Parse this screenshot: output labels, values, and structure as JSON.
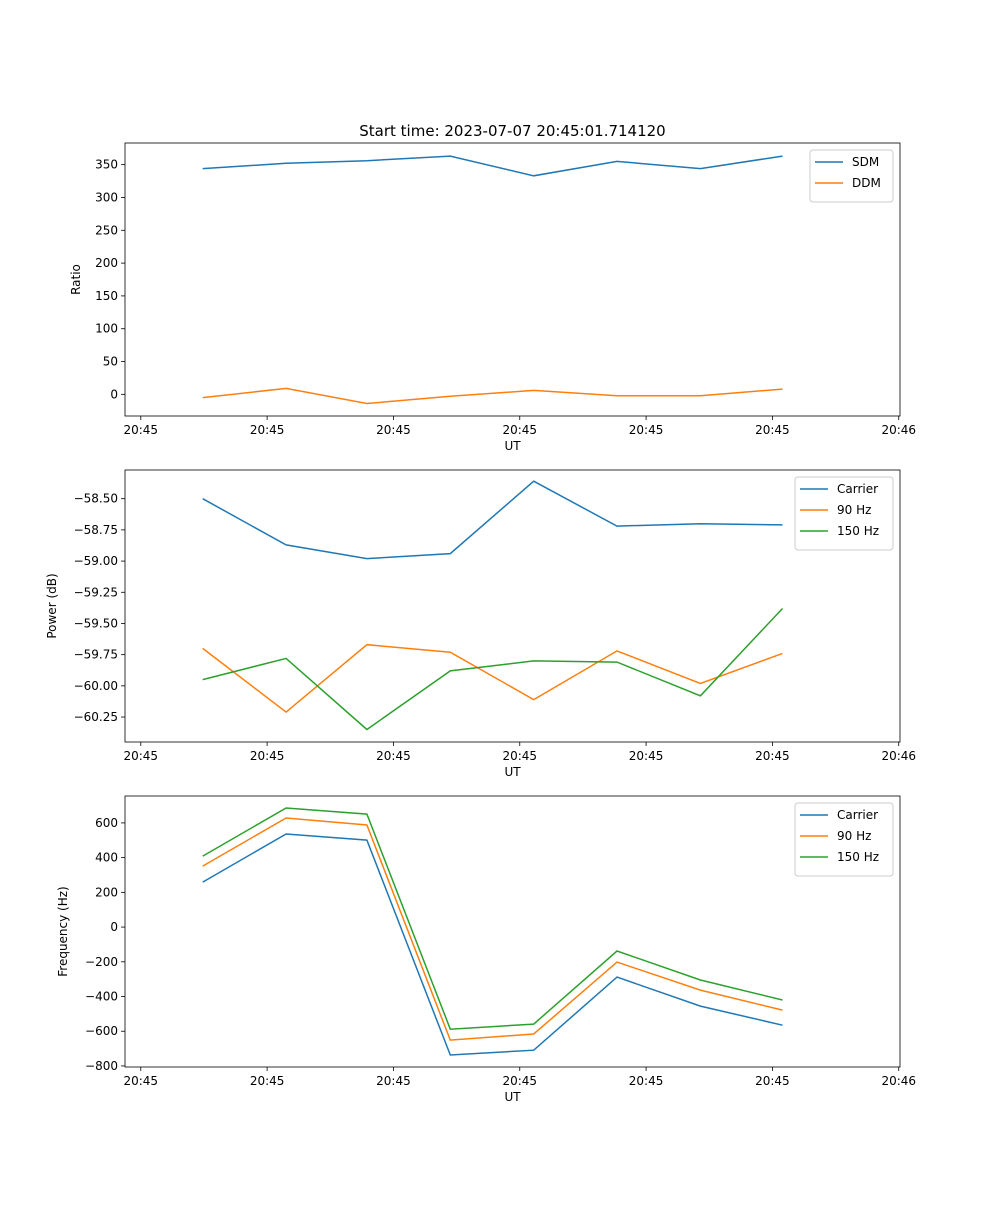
{
  "chart_data": [
    {
      "type": "line",
      "title": "Start time: 2023-07-07 20:45:01.714120",
      "xlabel": "UT",
      "ylabel": "Ratio",
      "x_seconds_after_20_45": [
        4.9,
        11.5,
        17.9,
        24.5,
        31.1,
        37.7,
        44.3,
        50.8
      ],
      "xlim": [
        -1.25,
        60.1
      ],
      "xticks": [
        0,
        10,
        20,
        30,
        40,
        50,
        60
      ],
      "xtick_labels": [
        "20:45",
        "20:45",
        "20:45",
        "20:45",
        "20:45",
        "20:45",
        "20:46"
      ],
      "ylim": [
        -33,
        383
      ],
      "yticks": [
        0,
        50,
        100,
        150,
        200,
        250,
        300,
        350
      ],
      "ytick_labels": [
        "0",
        "50",
        "100",
        "150",
        "200",
        "250",
        "300",
        "350"
      ],
      "legend_position": "top-right",
      "series": [
        {
          "name": "SDM",
          "color": "#1f77b4",
          "values": [
            344,
            352,
            356,
            363,
            333,
            355,
            344,
            363
          ]
        },
        {
          "name": "DDM",
          "color": "#ff7f0e",
          "values": [
            -5,
            9,
            -14,
            -3,
            6,
            -2,
            -2,
            8
          ]
        }
      ]
    },
    {
      "type": "line",
      "title": "",
      "xlabel": "UT",
      "ylabel": "Power (dB)",
      "x_seconds_after_20_45": [
        4.9,
        11.5,
        17.9,
        24.5,
        31.1,
        37.7,
        44.3,
        50.8
      ],
      "xlim": [
        -1.25,
        60.1
      ],
      "xticks": [
        0,
        10,
        20,
        30,
        40,
        50,
        60
      ],
      "xtick_labels": [
        "20:45",
        "20:45",
        "20:45",
        "20:45",
        "20:45",
        "20:45",
        "20:46"
      ],
      "ylim": [
        -60.45,
        -58.27
      ],
      "yticks": [
        -60.25,
        -60.0,
        -59.75,
        -59.5,
        -59.25,
        -59.0,
        -58.75,
        -58.5
      ],
      "ytick_labels": [
        "−60.25",
        "−60.00",
        "−59.75",
        "−59.50",
        "−59.25",
        "−59.00",
        "−58.75",
        "−58.50"
      ],
      "legend_position": "top-right",
      "series": [
        {
          "name": "Carrier",
          "color": "#1f77b4",
          "values": [
            -58.5,
            -58.87,
            -58.98,
            -58.94,
            -58.36,
            -58.72,
            -58.7,
            -58.71
          ]
        },
        {
          "name": "90 Hz",
          "color": "#ff7f0e",
          "values": [
            -59.7,
            -60.21,
            -59.67,
            -59.73,
            -60.11,
            -59.72,
            -59.98,
            -59.74
          ]
        },
        {
          "name": "150 Hz",
          "color": "#2ca02c",
          "values": [
            -59.95,
            -59.78,
            -60.35,
            -59.88,
            -59.8,
            -59.81,
            -60.08,
            -59.38
          ]
        }
      ]
    },
    {
      "type": "line",
      "title": "",
      "xlabel": "UT",
      "ylabel": "Frequency (Hz)",
      "x_seconds_after_20_45": [
        4.9,
        11.5,
        17.9,
        24.5,
        31.1,
        37.7,
        44.3,
        50.8
      ],
      "xlim": [
        -1.25,
        60.1
      ],
      "xticks": [
        0,
        10,
        20,
        30,
        40,
        50,
        60
      ],
      "xtick_labels": [
        "20:45",
        "20:45",
        "20:45",
        "20:45",
        "20:45",
        "20:45",
        "20:46"
      ],
      "ylim": [
        -806,
        755
      ],
      "yticks": [
        -800,
        -600,
        -400,
        -200,
        0,
        200,
        400,
        600
      ],
      "ytick_labels": [
        "−800",
        "−600",
        "−400",
        "−200",
        "0",
        "200",
        "400",
        "600"
      ],
      "legend_position": "top-right",
      "series": [
        {
          "name": "Carrier",
          "color": "#1f77b4",
          "values": [
            259,
            536,
            501,
            -737,
            -709,
            -288,
            -455,
            -565
          ]
        },
        {
          "name": "90 Hz",
          "color": "#ff7f0e",
          "values": [
            351,
            628,
            588,
            -651,
            -616,
            -202,
            -363,
            -478
          ]
        },
        {
          "name": "150 Hz",
          "color": "#2ca02c",
          "values": [
            409,
            686,
            651,
            -588,
            -559,
            -138,
            -305,
            -420
          ]
        }
      ]
    }
  ]
}
